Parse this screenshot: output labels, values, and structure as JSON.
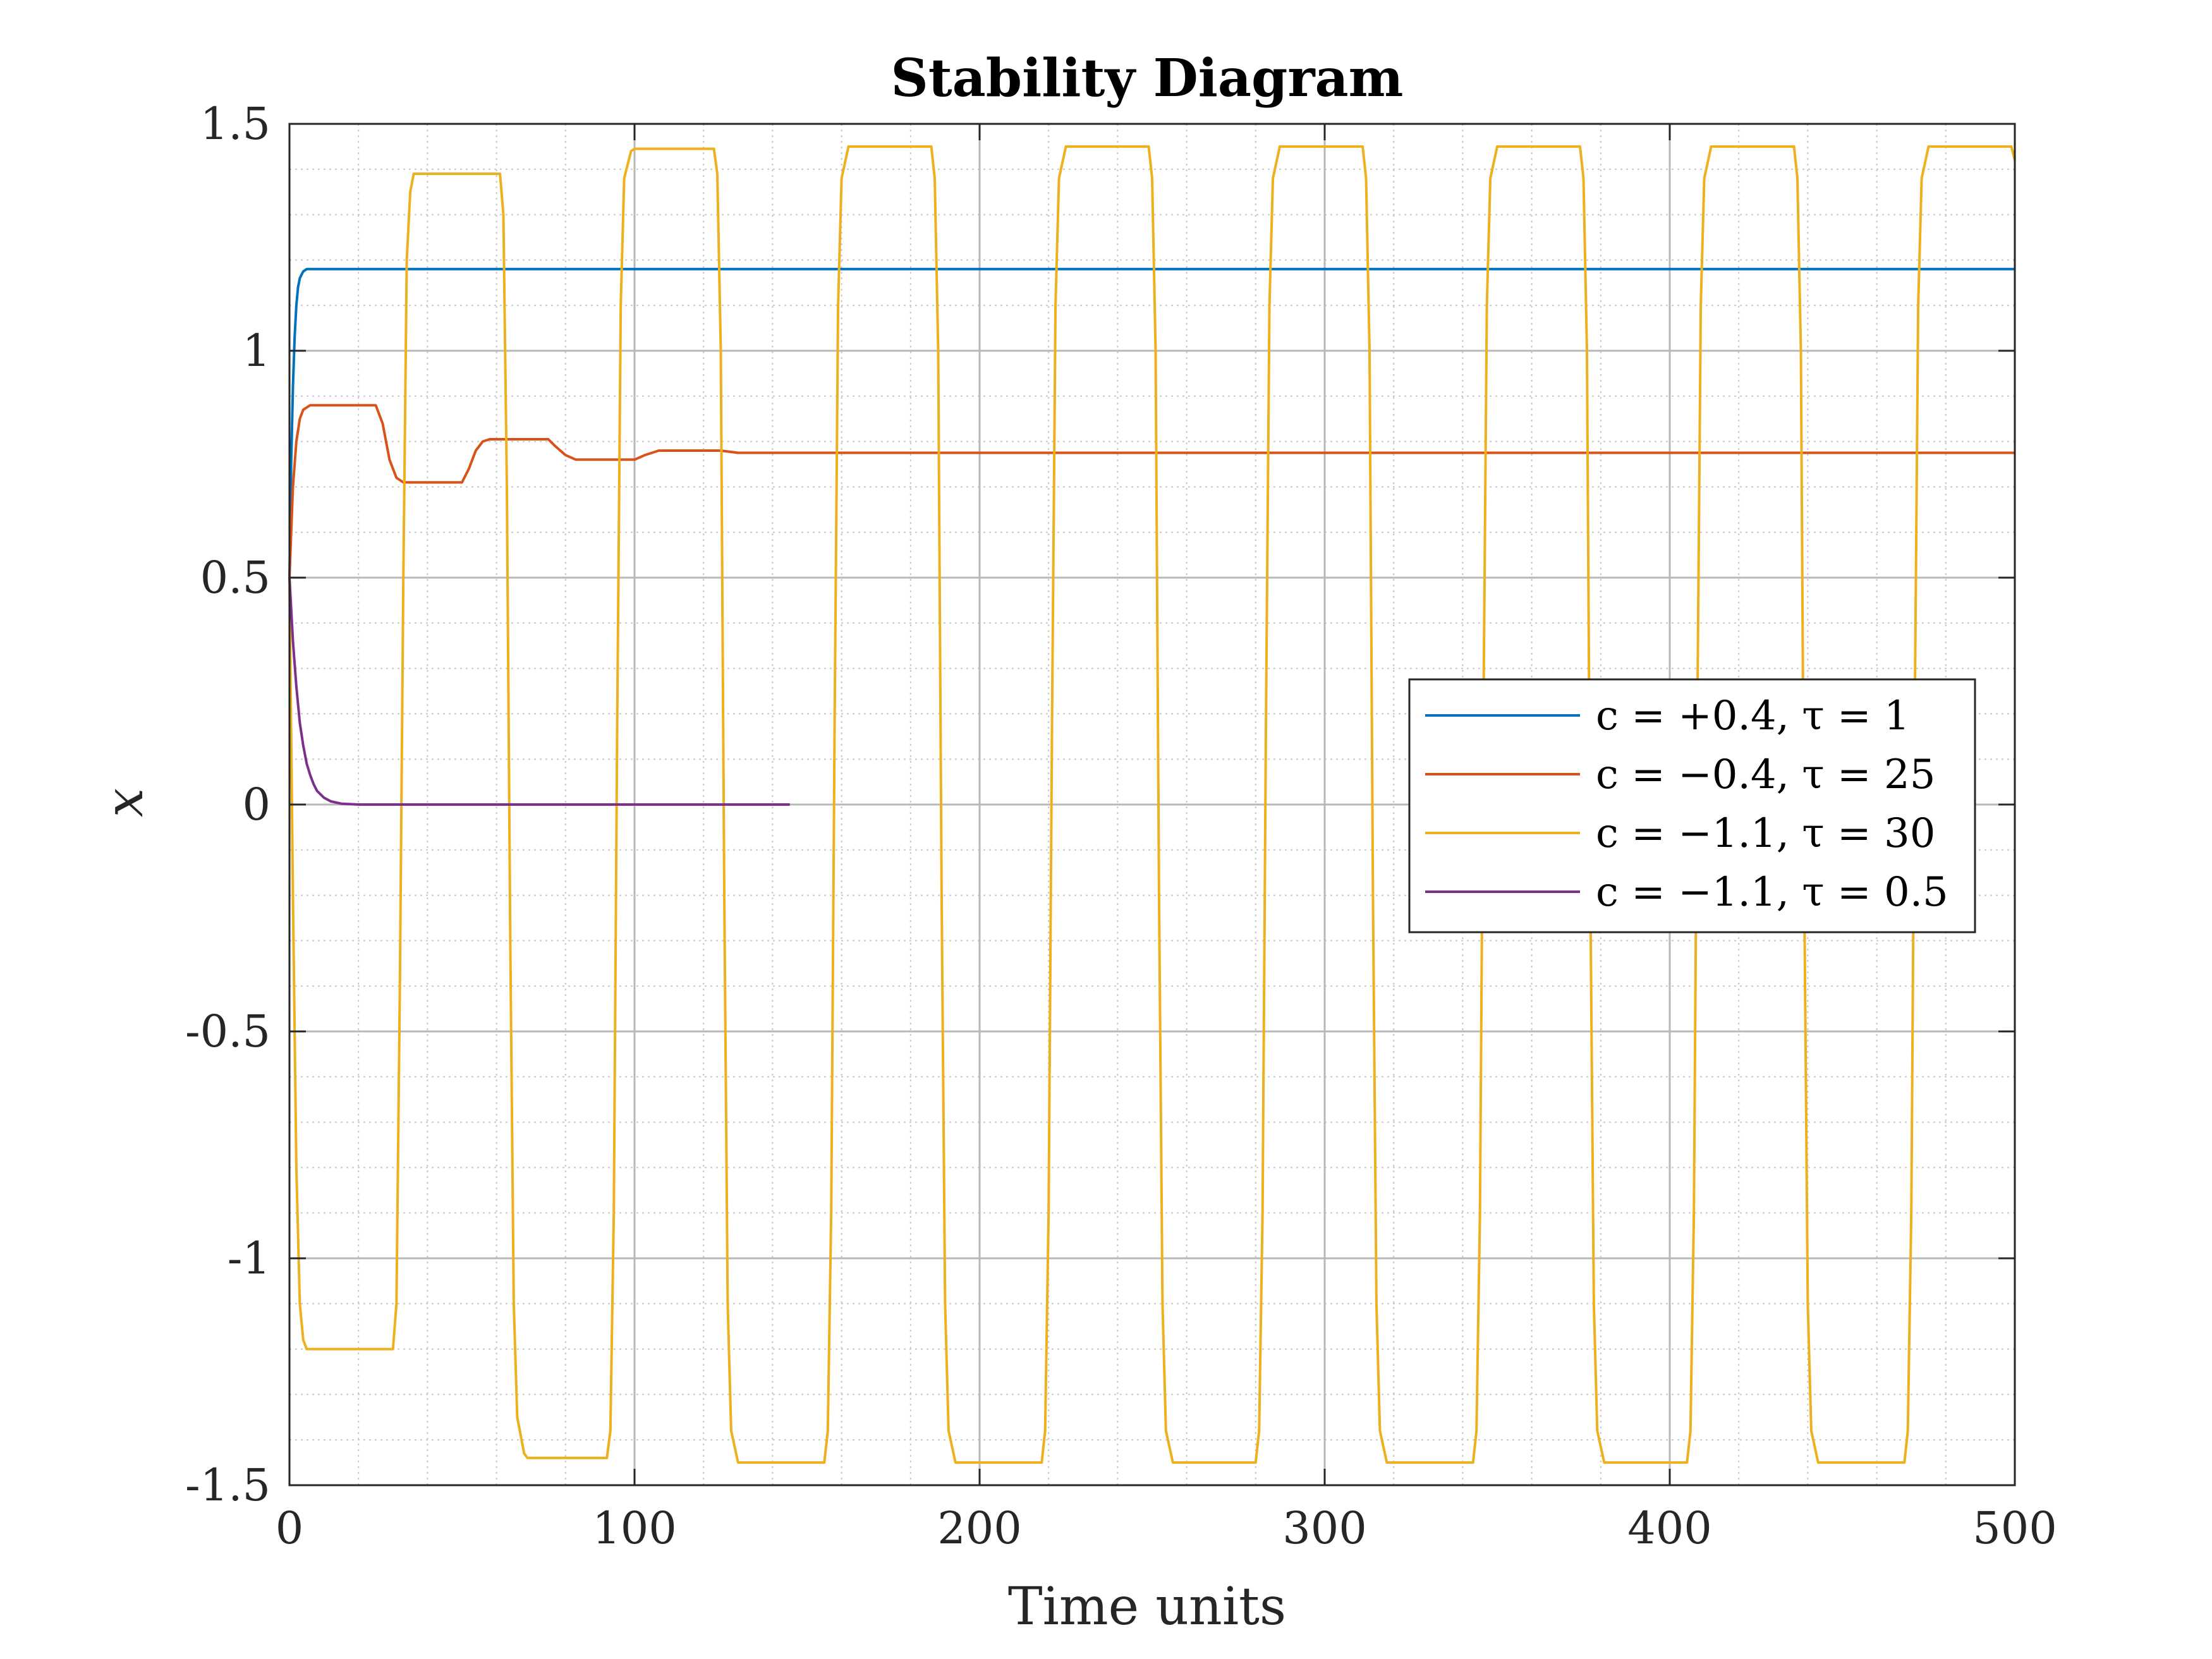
{
  "chart_data": {
    "type": "line",
    "title": "Stability Diagram",
    "xlabel": "Time units",
    "ylabel": "x",
    "xlim": [
      0,
      500
    ],
    "ylim": [
      -1.5,
      1.5
    ],
    "xticks": [
      0,
      100,
      200,
      300,
      400,
      500
    ],
    "xtick_labels": [
      "0",
      "100",
      "200",
      "300",
      "400",
      "500"
    ],
    "yticks": [
      1.5,
      1,
      0.5,
      0,
      -0.5,
      -1,
      -1.5
    ],
    "ytick_labels": [
      "1.5",
      "1",
      "0.5",
      "0",
      "-0.5",
      "-1",
      "-1.5"
    ],
    "grid": true,
    "minor_grid": true,
    "legend_position": "center-right",
    "series": [
      {
        "name": "c = +0.4, τ = 1",
        "color": "#0072BD",
        "points": [
          [
            0,
            0.5
          ],
          [
            0.5,
            0.75
          ],
          [
            1,
            0.92
          ],
          [
            1.5,
            1.03
          ],
          [
            2,
            1.1
          ],
          [
            2.5,
            1.14
          ],
          [
            3,
            1.16
          ],
          [
            4,
            1.175
          ],
          [
            5,
            1.18
          ],
          [
            500,
            1.18
          ]
        ]
      },
      {
        "name": "c = −0.4, τ = 25",
        "color": "#D95319",
        "points": [
          [
            0,
            0.5
          ],
          [
            1,
            0.7
          ],
          [
            2,
            0.8
          ],
          [
            3,
            0.85
          ],
          [
            4,
            0.87
          ],
          [
            6,
            0.88
          ],
          [
            25,
            0.88
          ],
          [
            27,
            0.84
          ],
          [
            29,
            0.76
          ],
          [
            31,
            0.72
          ],
          [
            33,
            0.71
          ],
          [
            50,
            0.71
          ],
          [
            52,
            0.74
          ],
          [
            54,
            0.78
          ],
          [
            56,
            0.8
          ],
          [
            58,
            0.805
          ],
          [
            75,
            0.805
          ],
          [
            77,
            0.79
          ],
          [
            80,
            0.77
          ],
          [
            83,
            0.76
          ],
          [
            100,
            0.76
          ],
          [
            103,
            0.77
          ],
          [
            107,
            0.78
          ],
          [
            125,
            0.78
          ],
          [
            130,
            0.775
          ],
          [
            150,
            0.775
          ],
          [
            500,
            0.775
          ]
        ]
      },
      {
        "name": "c = −1.1, τ = 30",
        "color": "#EDB120",
        "points": [
          [
            0,
            0.5
          ],
          [
            1,
            -0.2
          ],
          [
            2,
            -0.8
          ],
          [
            3,
            -1.1
          ],
          [
            4,
            -1.18
          ],
          [
            5,
            -1.2
          ],
          [
            30,
            -1.2
          ],
          [
            31,
            -1.1
          ],
          [
            32,
            -0.4
          ],
          [
            33,
            0.5
          ],
          [
            34,
            1.2
          ],
          [
            35,
            1.35
          ],
          [
            36,
            1.39
          ],
          [
            61,
            1.39
          ],
          [
            62,
            1.3
          ],
          [
            63,
            0.7
          ],
          [
            64,
            -0.3
          ],
          [
            65,
            -1.1
          ],
          [
            66,
            -1.35
          ],
          [
            68,
            -1.43
          ],
          [
            69,
            -1.44
          ],
          [
            92,
            -1.44
          ],
          [
            93,
            -1.38
          ],
          [
            94,
            -0.9
          ],
          [
            95,
            0.2
          ],
          [
            96,
            1.1
          ],
          [
            97,
            1.38
          ],
          [
            99,
            1.44
          ],
          [
            100,
            1.445
          ],
          [
            123,
            1.445
          ],
          [
            124,
            1.39
          ],
          [
            125,
            1.0
          ],
          [
            126,
            -0.2
          ],
          [
            127,
            -1.1
          ],
          [
            128,
            -1.38
          ],
          [
            130,
            -1.45
          ],
          [
            155,
            -1.45
          ],
          [
            156,
            -1.38
          ],
          [
            157,
            -0.9
          ],
          [
            158,
            0.2
          ],
          [
            159,
            1.1
          ],
          [
            160,
            1.38
          ],
          [
            162,
            1.45
          ],
          [
            186,
            1.45
          ],
          [
            187,
            1.38
          ],
          [
            188,
            1.0
          ],
          [
            189,
            -0.2
          ],
          [
            190,
            -1.1
          ],
          [
            191,
            -1.38
          ],
          [
            193,
            -1.45
          ],
          [
            218,
            -1.45
          ],
          [
            219,
            -1.38
          ],
          [
            220,
            -0.9
          ],
          [
            221,
            0.2
          ],
          [
            222,
            1.1
          ],
          [
            223,
            1.38
          ],
          [
            225,
            1.45
          ],
          [
            249,
            1.45
          ],
          [
            250,
            1.38
          ],
          [
            251,
            1.0
          ],
          [
            252,
            -0.2
          ],
          [
            253,
            -1.1
          ],
          [
            254,
            -1.38
          ],
          [
            256,
            -1.45
          ],
          [
            280,
            -1.45
          ],
          [
            281,
            -1.38
          ],
          [
            282,
            -0.9
          ],
          [
            283,
            0.2
          ],
          [
            284,
            1.1
          ],
          [
            285,
            1.38
          ],
          [
            287,
            1.45
          ],
          [
            311,
            1.45
          ],
          [
            312,
            1.38
          ],
          [
            313,
            1.0
          ],
          [
            314,
            -0.2
          ],
          [
            315,
            -1.1
          ],
          [
            316,
            -1.38
          ],
          [
            318,
            -1.45
          ],
          [
            343,
            -1.45
          ],
          [
            344,
            -1.38
          ],
          [
            345,
            -0.9
          ],
          [
            346,
            0.2
          ],
          [
            347,
            1.1
          ],
          [
            348,
            1.38
          ],
          [
            350,
            1.45
          ],
          [
            374,
            1.45
          ],
          [
            375,
            1.38
          ],
          [
            376,
            1.0
          ],
          [
            377,
            -0.2
          ],
          [
            378,
            -1.1
          ],
          [
            379,
            -1.38
          ],
          [
            381,
            -1.45
          ],
          [
            405,
            -1.45
          ],
          [
            406,
            -1.38
          ],
          [
            407,
            -0.9
          ],
          [
            408,
            0.2
          ],
          [
            409,
            1.1
          ],
          [
            410,
            1.38
          ],
          [
            412,
            1.45
          ],
          [
            436,
            1.45
          ],
          [
            437,
            1.38
          ],
          [
            438,
            1.0
          ],
          [
            439,
            -0.2
          ],
          [
            440,
            -1.1
          ],
          [
            441,
            -1.38
          ],
          [
            443,
            -1.45
          ],
          [
            468,
            -1.45
          ],
          [
            469,
            -1.38
          ],
          [
            470,
            -0.9
          ],
          [
            471,
            0.2
          ],
          [
            472,
            1.1
          ],
          [
            473,
            1.38
          ],
          [
            475,
            1.45
          ],
          [
            499,
            1.45
          ],
          [
            500,
            1.42
          ]
        ]
      },
      {
        "name": "c = −1.1, τ = 0.5",
        "color": "#7E2F8E",
        "points": [
          [
            0,
            0.5
          ],
          [
            1,
            0.36
          ],
          [
            2,
            0.26
          ],
          [
            3,
            0.18
          ],
          [
            4,
            0.13
          ],
          [
            5,
            0.09
          ],
          [
            6,
            0.065
          ],
          [
            7,
            0.045
          ],
          [
            8,
            0.03
          ],
          [
            10,
            0.015
          ],
          [
            12,
            0.007
          ],
          [
            15,
            0.002
          ],
          [
            20,
            0.0
          ],
          [
            145,
            0.0
          ]
        ]
      }
    ]
  }
}
